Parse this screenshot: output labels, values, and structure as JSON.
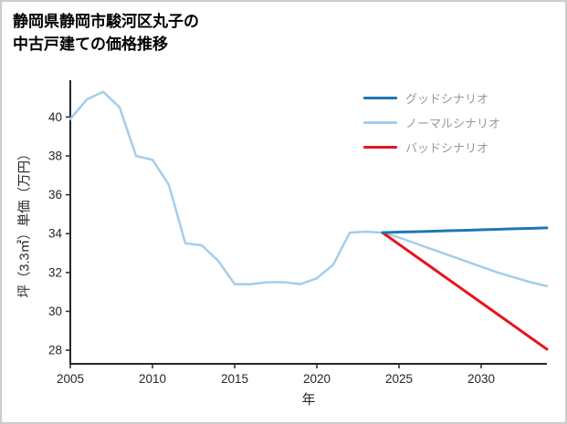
{
  "title": {
    "line1": "静岡県静岡市駿河区丸子の",
    "line2": "中古戸建ての価格推移"
  },
  "chart_data": {
    "type": "line",
    "title": "静岡県静岡市駿河区丸子の中古戸建ての価格推移",
    "xlabel": "年",
    "ylabel": "坪（3.3㎡）単価（万円）",
    "xlim": [
      2005,
      2034
    ],
    "ylim": [
      27.3,
      41.8
    ],
    "xticks": [
      2005,
      2010,
      2015,
      2020,
      2025,
      2030
    ],
    "yticks": [
      28,
      30,
      32,
      34,
      36,
      38,
      40
    ],
    "grid": false,
    "legend_position": "top-right",
    "axis_color": "#262626",
    "series": [
      {
        "name": "グッドシナリオ",
        "color": "#1f77b4",
        "x": [
          2024,
          2025,
          2026,
          2027,
          2028,
          2029,
          2030,
          2031,
          2032,
          2033,
          2034
        ],
        "y": [
          34.05,
          34.08,
          34.1,
          34.12,
          34.15,
          34.17,
          34.2,
          34.22,
          34.25,
          34.27,
          34.3
        ]
      },
      {
        "name": "ノーマルシナリオ",
        "color": "#a5cde9",
        "x": [
          2005,
          2006,
          2007,
          2008,
          2009,
          2010,
          2011,
          2012,
          2013,
          2014,
          2015,
          2016,
          2017,
          2018,
          2019,
          2020,
          2021,
          2022,
          2023,
          2024,
          2025,
          2026,
          2027,
          2028,
          2029,
          2030,
          2031,
          2032,
          2033,
          2034
        ],
        "y": [
          39.9,
          40.9,
          41.3,
          40.5,
          38.0,
          37.8,
          36.5,
          33.5,
          33.4,
          32.6,
          31.4,
          31.4,
          31.5,
          31.5,
          31.4,
          31.7,
          32.4,
          34.05,
          34.1,
          34.05,
          33.8,
          33.5,
          33.2,
          32.9,
          32.6,
          32.3,
          32.0,
          31.75,
          31.5,
          31.3
        ]
      },
      {
        "name": "バッドシナリオ",
        "color": "#e8131b",
        "x": [
          2024,
          2025,
          2026,
          2027,
          2028,
          2029,
          2030,
          2031,
          2032,
          2033,
          2034
        ],
        "y": [
          34.05,
          33.45,
          32.85,
          32.25,
          31.65,
          31.05,
          30.45,
          29.85,
          29.25,
          28.65,
          28.05
        ]
      }
    ]
  }
}
